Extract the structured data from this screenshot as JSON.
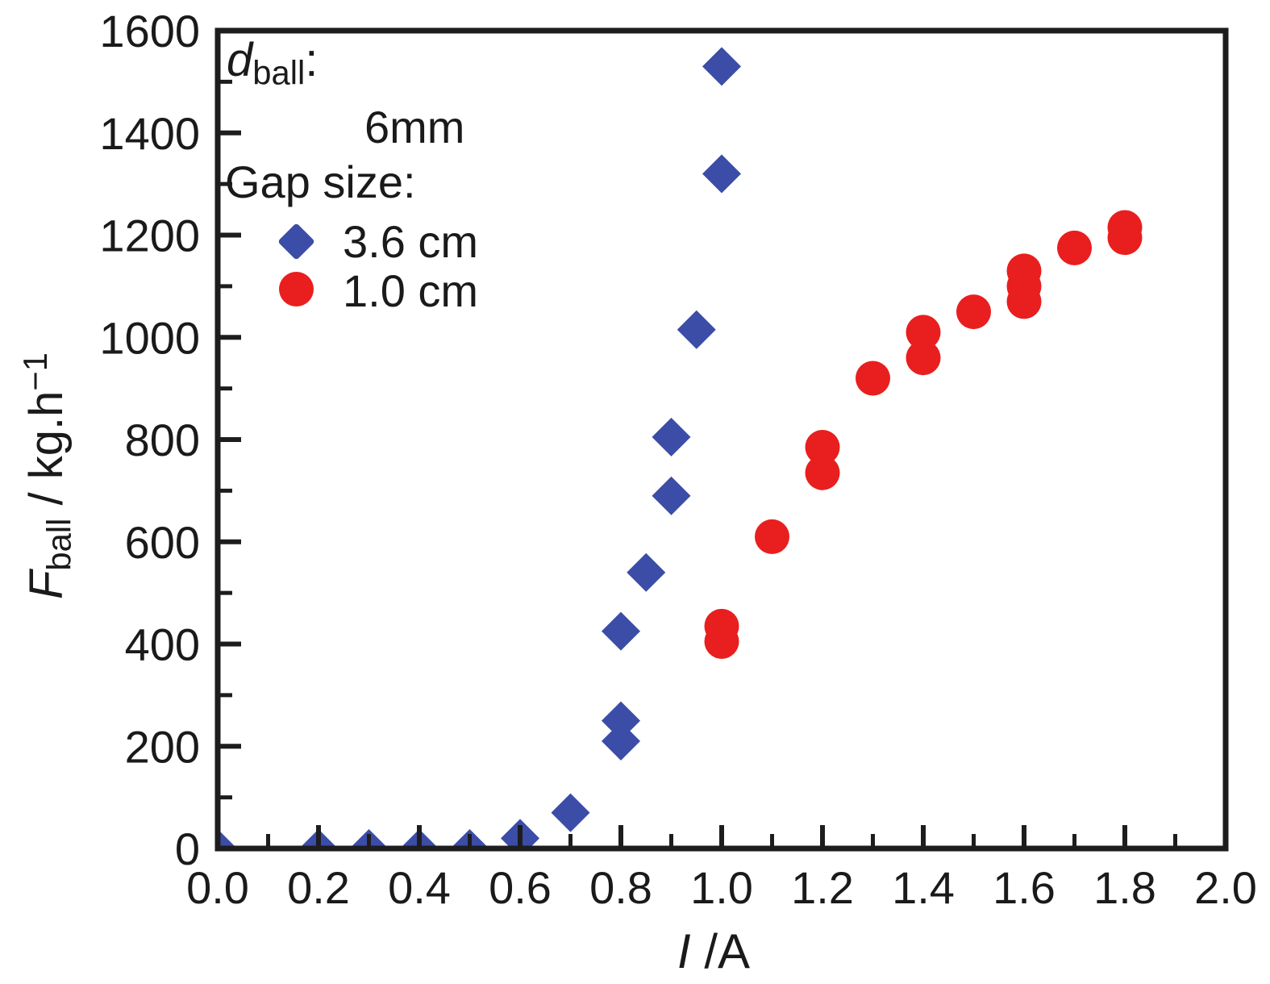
{
  "colors": {
    "background": "#ffffff",
    "frame": "#1d1d1f",
    "text": "#1a1a1a",
    "blue": "#3b4da6",
    "red": "#e81f1e"
  },
  "chart_data": {
    "type": "scatter",
    "title": "",
    "xlabel_parts": {
      "main": "I",
      "rest": " /A"
    },
    "ylabel_parts": {
      "main": "F",
      "sub": "ball",
      "rest": " / kg.h",
      "sup": "−1"
    },
    "xlim": [
      0.0,
      2.0
    ],
    "ylim": [
      0,
      1600
    ],
    "grid": false,
    "x_major_ticks": [
      0.0,
      0.2,
      0.4,
      0.6,
      0.8,
      1.0,
      1.2,
      1.4,
      1.6,
      1.8,
      2.0
    ],
    "x_major_tick_labels": [
      "0.0",
      "0.2",
      "0.4",
      "0.6",
      "0.8",
      "1.0",
      "1.2",
      "1.4",
      "1.6",
      "1.8",
      "2.0"
    ],
    "x_minor_ticks": [
      0.1,
      0.3,
      0.5,
      0.7,
      0.9,
      1.1,
      1.3,
      1.5,
      1.7,
      1.9
    ],
    "y_major_ticks": [
      0,
      200,
      400,
      600,
      800,
      1000,
      1200,
      1400,
      1600
    ],
    "y_major_tick_labels": [
      "0",
      "200",
      "400",
      "600",
      "800",
      "1000",
      "1200",
      "1400",
      "1600"
    ],
    "y_minor_ticks": [
      100,
      300,
      500,
      700,
      900,
      1100,
      1300,
      1500
    ],
    "legend": {
      "position": "top-left-inside",
      "title_parts": {
        "main": "d",
        "sub": "ball",
        "colon": ":"
      },
      "subtitle": "6mm",
      "gap_label": "Gap size:",
      "entries": [
        {
          "name": "3.6 cm",
          "marker": "diamond",
          "color": "#3b4da6"
        },
        {
          "name": "1.0 cm",
          "marker": "circle",
          "color": "#e81f1e"
        }
      ]
    },
    "series": [
      {
        "name": "3.6 cm",
        "marker": "diamond",
        "color": "#3b4da6",
        "marker_half_size": 24,
        "points": [
          [
            0.0,
            0
          ],
          [
            0.2,
            0
          ],
          [
            0.3,
            0
          ],
          [
            0.4,
            0
          ],
          [
            0.5,
            0
          ],
          [
            0.6,
            20
          ],
          [
            0.7,
            70
          ],
          [
            0.8,
            210
          ],
          [
            0.8,
            250
          ],
          [
            0.8,
            425
          ],
          [
            0.85,
            540
          ],
          [
            0.9,
            690
          ],
          [
            0.9,
            805
          ],
          [
            0.95,
            1015
          ],
          [
            1.0,
            1320
          ],
          [
            1.0,
            1530
          ]
        ]
      },
      {
        "name": "1.0 cm",
        "marker": "circle",
        "color": "#e81f1e",
        "marker_half_size": 21.5,
        "points": [
          [
            1.0,
            405
          ],
          [
            1.0,
            435
          ],
          [
            1.1,
            610
          ],
          [
            1.2,
            735
          ],
          [
            1.2,
            785
          ],
          [
            1.3,
            920
          ],
          [
            1.4,
            960
          ],
          [
            1.4,
            1010
          ],
          [
            1.5,
            1050
          ],
          [
            1.6,
            1070
          ],
          [
            1.6,
            1100
          ],
          [
            1.6,
            1130
          ],
          [
            1.7,
            1175
          ],
          [
            1.8,
            1195
          ],
          [
            1.8,
            1215
          ]
        ]
      }
    ]
  }
}
